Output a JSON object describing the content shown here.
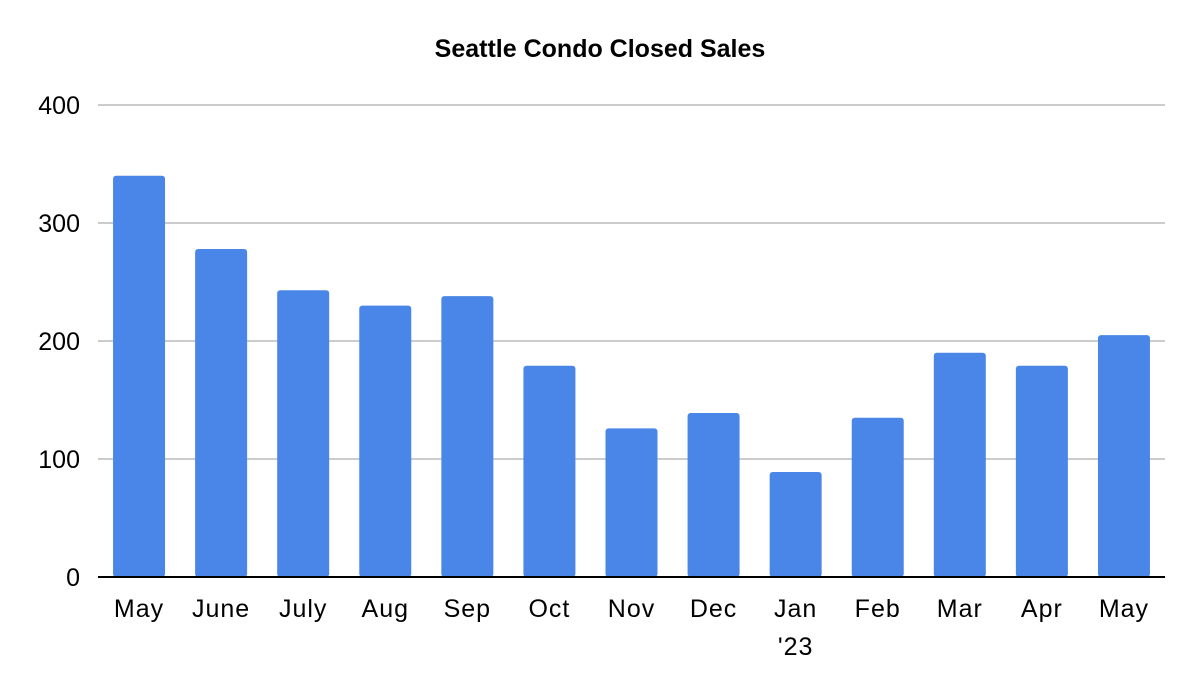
{
  "chart_data": {
    "type": "bar",
    "title": "Seattle Condo Closed Sales",
    "xlabel": "",
    "ylabel": "",
    "categories": [
      "May",
      "June",
      "July",
      "Aug",
      "Sep",
      "Oct",
      "Nov",
      "Dec",
      "Jan\n'23",
      "Feb",
      "Mar",
      "Apr",
      "May"
    ],
    "values": [
      340,
      278,
      243,
      230,
      238,
      179,
      126,
      139,
      89,
      135,
      190,
      179,
      205
    ],
    "ylim": [
      0,
      400
    ],
    "yticks": [
      0,
      100,
      200,
      300,
      400
    ],
    "grid": true,
    "legend": "none",
    "bar_color": "#4A86E8",
    "grid_color": "#CCCCCC",
    "axis_color": "#000000"
  }
}
